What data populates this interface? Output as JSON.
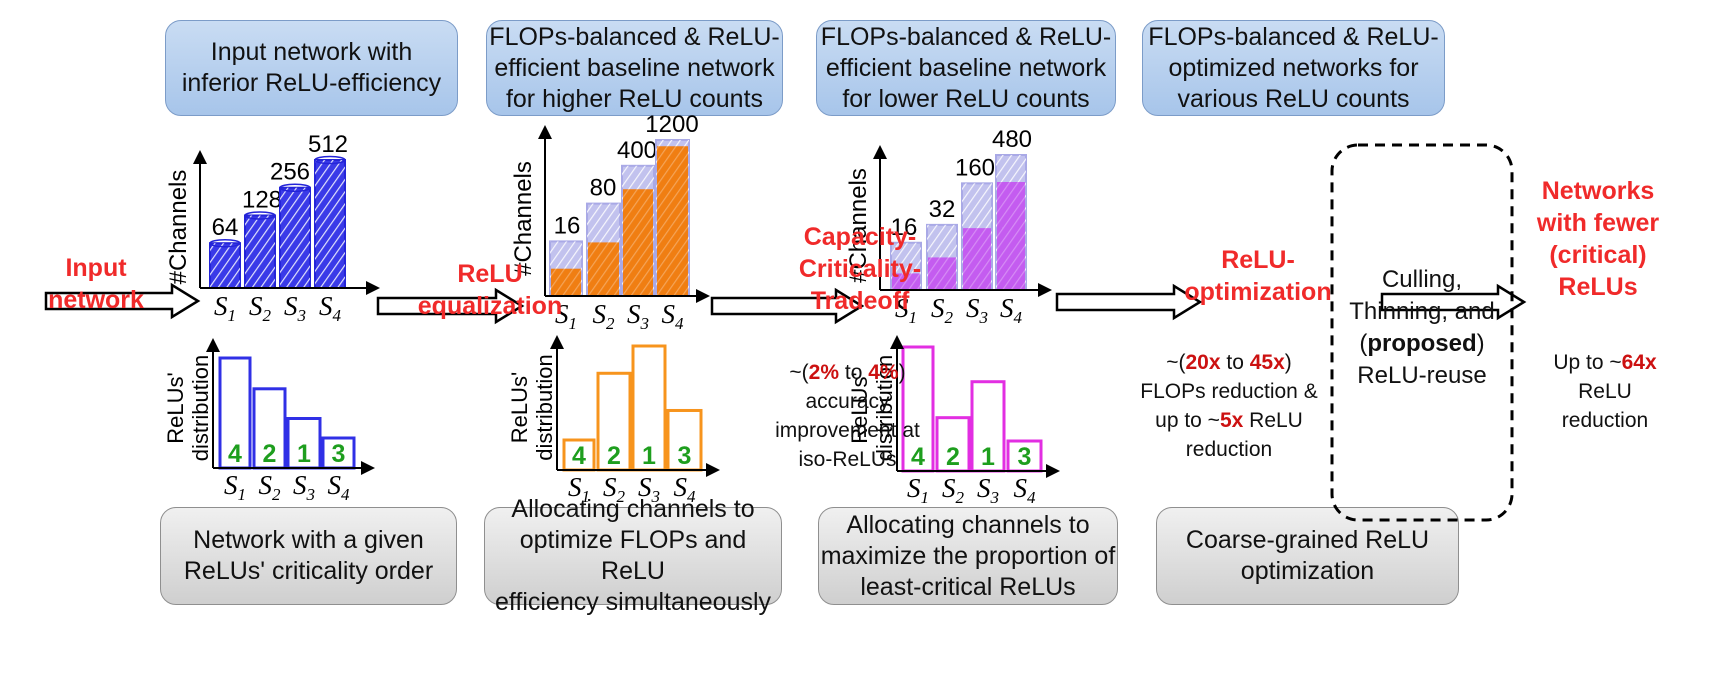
{
  "top_boxes": [
    [
      "Input network with",
      "inferior ReLU-efficiency"
    ],
    [
      "FLOPs-balanced & ReLU-",
      "efficient baseline network",
      "for higher ReLU counts"
    ],
    [
      "FLOPs-balanced & ReLU-",
      "efficient baseline network",
      "for lower ReLU counts"
    ],
    [
      "FLOPs-balanced & ReLU-",
      "optimized networks for",
      "various ReLU counts"
    ]
  ],
  "bottom_boxes": [
    [
      "Network with a given",
      "ReLUs' criticality order"
    ],
    [
      "Allocating channels to",
      "optimize FLOPs and ReLU",
      "efficiency simultaneously"
    ],
    [
      "Allocating channels to",
      "maximize the proportion of",
      "least-critical ReLUs"
    ],
    [
      "Coarse-grained ReLU",
      "optimization"
    ]
  ],
  "step_labels": {
    "input": [
      "Input",
      "network"
    ],
    "equalization": [
      "ReLU",
      "equalization"
    ],
    "tradeoff": [
      "Capacity-",
      "Criticality-",
      "Tradeoff"
    ],
    "optimization": [
      "ReLU-",
      "optimization"
    ],
    "output": [
      "Networks",
      "with fewer",
      "(critical)",
      "ReLUs"
    ]
  },
  "notes": {
    "accuracy": {
      "prefix": "~(",
      "v1": "2%",
      "mid": " to ",
      "v2": "4%",
      "suffix": ")",
      "lines": [
        "accuracy",
        "improvement at",
        "iso-ReLUs"
      ]
    },
    "flops": {
      "prefix": "~(",
      "v1": "20x",
      "mid": " to ",
      "v2": "45x",
      "suffix": ")",
      "line2": "FLOPs reduction &",
      "line3_prefix": "up to ~",
      "line3_value": "5x",
      "line3_suffix": " ReLU",
      "line4": "reduction"
    },
    "relu_reduction": {
      "prefix": "Up to ~",
      "value": "64x",
      "lines": [
        "ReLU",
        "reduction"
      ]
    }
  },
  "dashed_box": {
    "line1": "Culling,",
    "line2": "Thinning, and",
    "open": "(",
    "bold": "proposed",
    "close": ")",
    "line4": "ReLU-reuse"
  },
  "axis_labels": {
    "channels": "#Channels",
    "relus_line1": "ReLUs'",
    "relus_line2": "distribution",
    "stage": "S"
  },
  "stages": [
    "1",
    "2",
    "3",
    "4"
  ],
  "channel_charts": [
    {
      "channels": [
        64,
        128,
        256,
        512
      ],
      "fill": "#3a3ae8",
      "solid": null,
      "solid_fraction": null
    },
    {
      "channels": [
        16,
        80,
        400,
        1200
      ],
      "fill": "#c2c2ee",
      "solid": "#f07e12",
      "solid_fraction": [
        0.5,
        0.58,
        0.82,
        0.96
      ]
    },
    {
      "channels": [
        16,
        32,
        160,
        480
      ],
      "fill": "#c2c2ee",
      "solid": "#c45cf0",
      "solid_fraction": [
        0.35,
        0.5,
        0.58,
        0.8
      ]
    }
  ],
  "relu_charts": [
    {
      "values": [
        1.0,
        0.72,
        0.45,
        0.2
      ],
      "ranks": [
        "4",
        "2",
        "1",
        "3"
      ],
      "color": "#3030e6"
    },
    {
      "values": [
        0.23,
        0.78,
        1.0,
        0.48
      ],
      "ranks": [
        "4",
        "2",
        "1",
        "3"
      ],
      "color": "#f7941d"
    },
    {
      "values": [
        1.0,
        0.43,
        0.72,
        0.2
      ],
      "ranks": [
        "4",
        "2",
        "1",
        "3"
      ],
      "color": "#e22ee2"
    }
  ],
  "colors": {
    "accent_red": "#f02a2a",
    "rank_green": "#1e9e1e"
  }
}
